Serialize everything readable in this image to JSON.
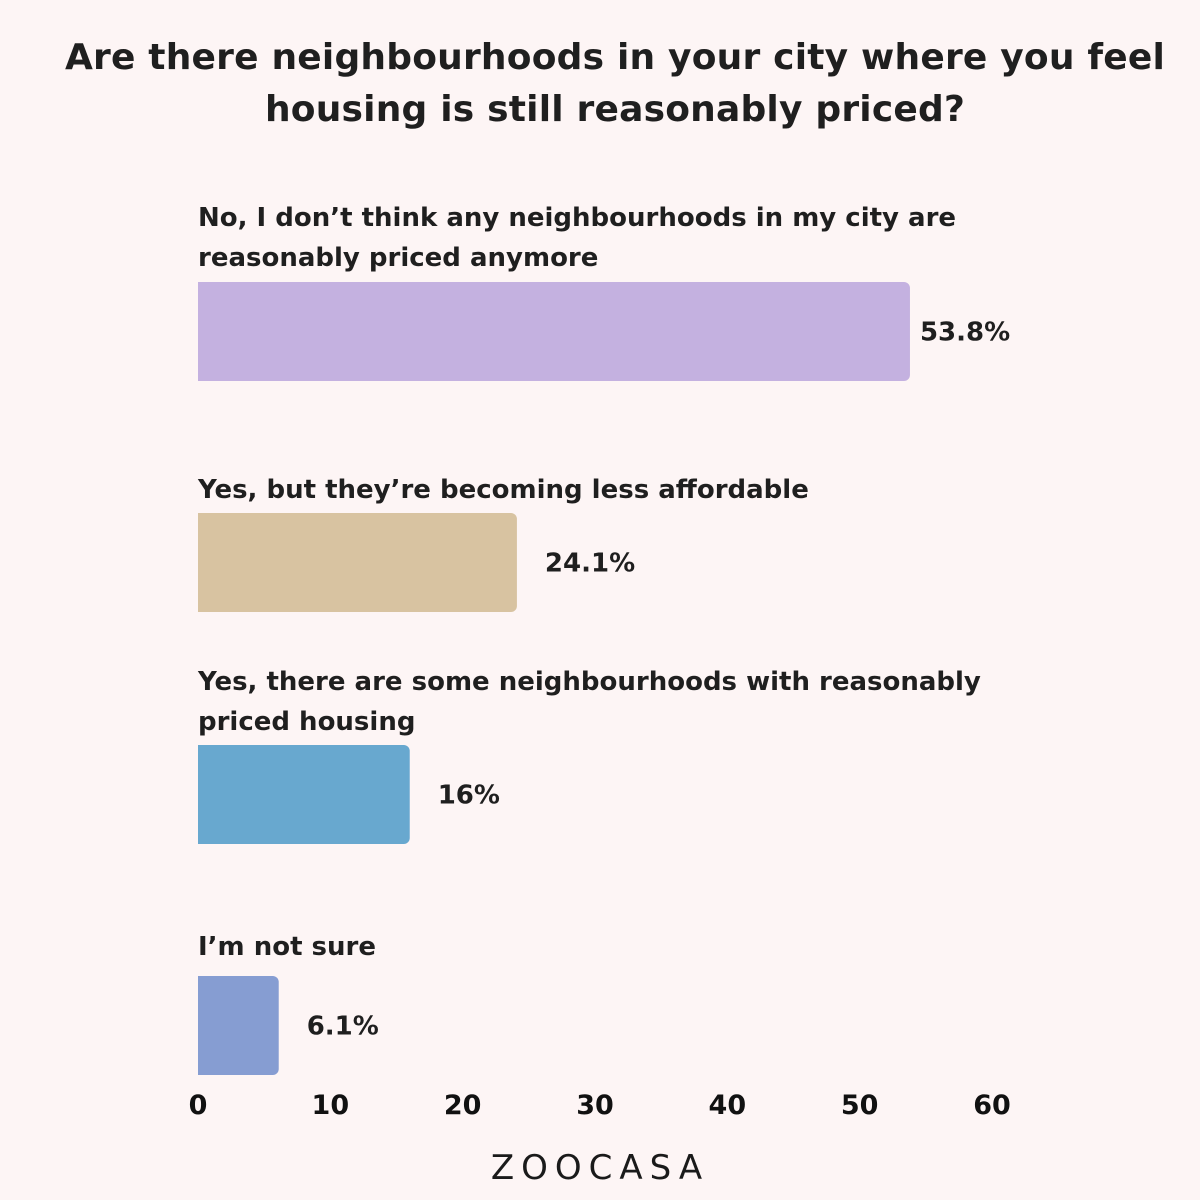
{
  "chart_data": {
    "type": "bar",
    "orientation": "horizontal",
    "title": "Are there neighbourhoods in your city where you feel housing is still reasonably priced?",
    "categories": [
      "No, I don’t think any neighbourhoods in my city are reasonably priced anymore",
      "Yes, but they’re becoming less affordable",
      "Yes, there are some neighbourhoods with reasonably priced housing",
      "I’m not sure"
    ],
    "values": [
      53.8,
      24.1,
      16,
      6.1
    ],
    "value_labels": [
      "53.8%",
      "24.1%",
      "16%",
      "6.1%"
    ],
    "colors": [
      "#c4b1e0",
      "#d8c3a1",
      "#68a8cf",
      "#869dd2"
    ],
    "xlim": [
      0,
      60
    ],
    "xticks": [
      "0",
      "10",
      "20",
      "30",
      "40",
      "50",
      "60"
    ],
    "grid": false,
    "legend": "none"
  },
  "brand": {
    "logo_text": "ZOOCASA"
  }
}
